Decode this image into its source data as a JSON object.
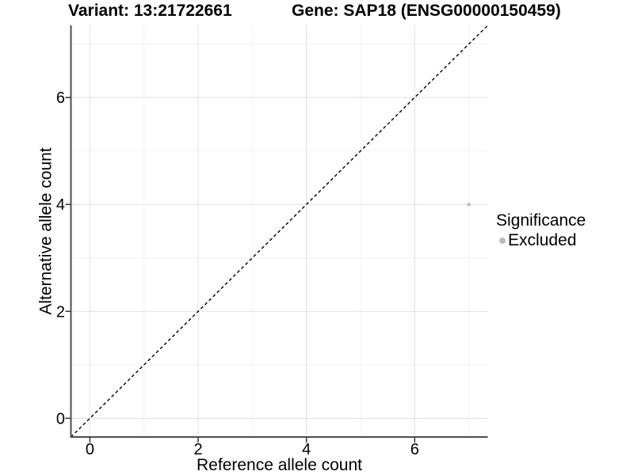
{
  "plot": {
    "title_variant": "Variant: 13:21722661",
    "title_gene": "Gene: SAP18 (ENSG00000150459)"
  },
  "chart_data": {
    "type": "scatter",
    "title": "Variant: 13:21722661 / Gene: SAP18 (ENSG00000150459)",
    "xlabel": "Reference allele count",
    "ylabel": "Alternative allele count",
    "xlim": [
      -0.35,
      7.35
    ],
    "ylim": [
      -0.35,
      7.35
    ],
    "xticks": [
      0,
      2,
      4,
      6
    ],
    "yticks": [
      0,
      2,
      4,
      6
    ],
    "xticks_minor": [
      1,
      3,
      5,
      7
    ],
    "yticks_minor": [
      1,
      3,
      5,
      7
    ],
    "grid": "major+minor",
    "legend_position": "right",
    "series": [
      {
        "name": "Excluded",
        "color": "#bebebe",
        "points": [
          {
            "x": 7,
            "y": 4
          }
        ]
      }
    ],
    "reference_line": {
      "kind": "identity",
      "slope": 1,
      "intercept": 0,
      "style": "dashed",
      "color": "#000000"
    },
    "legend": {
      "title": "Significance",
      "items": [
        {
          "label": "Excluded",
          "color": "#bebebe",
          "marker": "circle"
        }
      ]
    }
  },
  "colors": {
    "background": "#ffffff",
    "grid_major": "#e4e4e4",
    "grid_minor": "#f1f1f1",
    "axis_line": "#4d4d4d",
    "tick_mark": "#333333",
    "text": "#000000",
    "point": "#bebebe"
  }
}
